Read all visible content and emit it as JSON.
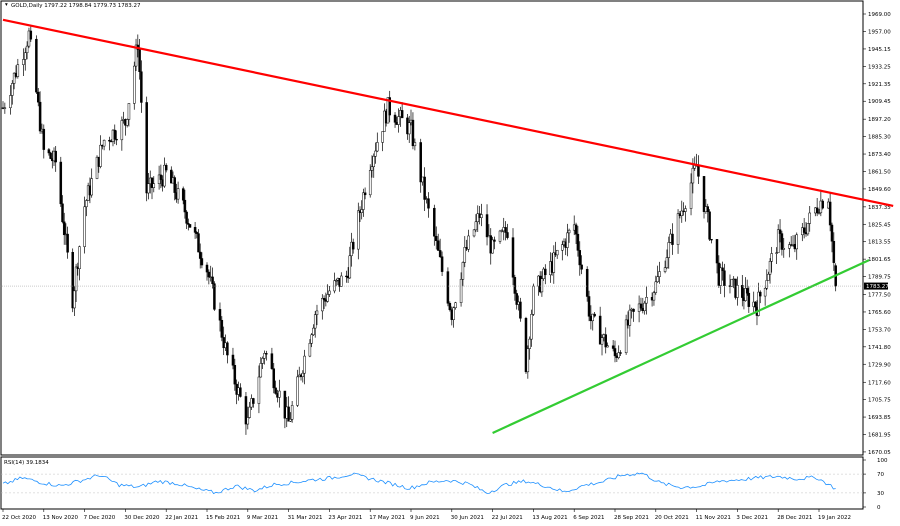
{
  "header": {
    "symbol_line": "GOLD,Daily  1797.22 1798.84 1779.73 1783.27",
    "rsi_label": "RSI(14) 39.1834"
  },
  "current_price_tag": "1783.27",
  "colors": {
    "resistance": "#ff0000",
    "support": "#33cc33",
    "rsi_line": "#1e90ff",
    "candle_body": "#000000",
    "background": "#ffffff"
  },
  "chart_data": {
    "type": "candlestick",
    "title": "",
    "instrument": "GOLD",
    "timeframe": "Daily",
    "last_bar": {
      "open": 1797.22,
      "high": 1798.84,
      "low": 1779.73,
      "close": 1783.27
    },
    "ylim": [
      1670.0,
      1969.0
    ],
    "y_ticks": [
      "1969.00",
      "1957.00",
      "1945.15",
      "1933.25",
      "1921.35",
      "1909.45",
      "1897.20",
      "1885.30",
      "1873.40",
      "1861.50",
      "1849.60",
      "1837.35",
      "1825.45",
      "1813.55",
      "1801.65",
      "1789.75",
      "1777.50",
      "1765.60",
      "1753.70",
      "1741.80",
      "1729.90",
      "1717.60",
      "1705.75",
      "1693.85",
      "1681.95",
      "1670.05"
    ],
    "x_ticks": [
      "22 Oct 2020",
      "13 Nov 2020",
      "7 Dec 2020",
      "30 Dec 2020",
      "22 Jan 2021",
      "15 Feb 2021",
      "9 Mar 2021",
      "31 Mar 2021",
      "23 Apr 2021",
      "17 May 2021",
      "9 Jun 2021",
      "30 Jun 2021",
      "22 Jul 2021",
      "13 Aug 2021",
      "6 Sep 2021",
      "28 Sep 2021",
      "20 Oct 2021",
      "11 Nov 2021",
      "3 Dec 2021",
      "28 Dec 2021",
      "19 Jan 2022"
    ],
    "price_path": [
      [
        "22 Oct 2020",
        1905
      ],
      [
        "5 Nov 2020",
        1955
      ],
      [
        "13 Nov 2020",
        1875
      ],
      [
        "20 Nov 2020",
        1868
      ],
      [
        "30 Nov 2020",
        1775
      ],
      [
        "7 Dec 2020",
        1838
      ],
      [
        "18 Dec 2020",
        1883
      ],
      [
        "30 Dec 2020",
        1895
      ],
      [
        "6 Jan 2021",
        1950
      ],
      [
        "11 Jan 2021",
        1848
      ],
      [
        "22 Jan 2021",
        1860
      ],
      [
        "2 Feb 2021",
        1835
      ],
      [
        "15 Feb 2021",
        1795
      ],
      [
        "26 Feb 2021",
        1735
      ],
      [
        "9 Mar 2021",
        1690
      ],
      [
        "18 Mar 2021",
        1740
      ],
      [
        "31 Mar 2021",
        1690
      ],
      [
        "15 Apr 2021",
        1765
      ],
      [
        "23 Apr 2021",
        1780
      ],
      [
        "3 May 2021",
        1790
      ],
      [
        "17 May 2021",
        1868
      ],
      [
        "27 May 2021",
        1905
      ],
      [
        "9 Jun 2021",
        1890
      ],
      [
        "16 Jun 2021",
        1845
      ],
      [
        "30 Jun 2021",
        1765
      ],
      [
        "7 Jul 2021",
        1805
      ],
      [
        "15 Jul 2021",
        1832
      ],
      [
        "22 Jul 2021",
        1808
      ],
      [
        "30 Jul 2021",
        1822
      ],
      [
        "9 Aug 2021",
        1730
      ],
      [
        "13 Aug 2021",
        1778
      ],
      [
        "25 Aug 2021",
        1800
      ],
      [
        "6 Sep 2021",
        1825
      ],
      [
        "15 Sep 2021",
        1760
      ],
      [
        "28 Sep 2021",
        1735
      ],
      [
        "6 Oct 2021",
        1760
      ],
      [
        "20 Oct 2021",
        1784
      ],
      [
        "11 Nov 2021",
        1865
      ],
      [
        "23 Nov 2021",
        1790
      ],
      [
        "3 Dec 2021",
        1780
      ],
      [
        "15 Dec 2021",
        1770
      ],
      [
        "28 Dec 2021",
        1815
      ],
      [
        "5 Jan 2022",
        1808
      ],
      [
        "19 Jan 2022",
        1840
      ],
      [
        "24 Jan 2022",
        1845
      ],
      [
        "27 Jan 2022",
        1798
      ],
      [
        "28 Jan 2022",
        1783.27
      ]
    ],
    "trendlines": [
      {
        "role": "resistance",
        "color": "#ff0000",
        "from": [
          "22 Oct 2020",
          1965
        ],
        "to": [
          "28 Feb 2022",
          1838
        ]
      },
      {
        "role": "support",
        "color": "#33cc33",
        "from": [
          "22 Jul 2021",
          1683
        ],
        "to": [
          "15 Feb 2022",
          1801
        ]
      }
    ],
    "rsi": {
      "label": "RSI(14) 39.1834",
      "value": 39.1834,
      "ylim": [
        0,
        100
      ],
      "y_ticks": [
        "100",
        "70",
        "30",
        "0"
      ],
      "path": [
        [
          0,
          48
        ],
        [
          0.02,
          62
        ],
        [
          0.04,
          52
        ],
        [
          0.06,
          45
        ],
        [
          0.08,
          56
        ],
        [
          0.1,
          68
        ],
        [
          0.12,
          47
        ],
        [
          0.14,
          42
        ],
        [
          0.16,
          55
        ],
        [
          0.18,
          50
        ],
        [
          0.2,
          38
        ],
        [
          0.22,
          30
        ],
        [
          0.24,
          45
        ],
        [
          0.26,
          35
        ],
        [
          0.28,
          48
        ],
        [
          0.3,
          52
        ],
        [
          0.32,
          58
        ],
        [
          0.34,
          62
        ],
        [
          0.36,
          70
        ],
        [
          0.38,
          60
        ],
        [
          0.4,
          50
        ],
        [
          0.42,
          40
        ],
        [
          0.44,
          52
        ],
        [
          0.46,
          57
        ],
        [
          0.48,
          50
        ],
        [
          0.5,
          30
        ],
        [
          0.52,
          48
        ],
        [
          0.54,
          55
        ],
        [
          0.56,
          45
        ],
        [
          0.58,
          32
        ],
        [
          0.6,
          46
        ],
        [
          0.62,
          54
        ],
        [
          0.64,
          68
        ],
        [
          0.66,
          72
        ],
        [
          0.68,
          50
        ],
        [
          0.7,
          42
        ],
        [
          0.72,
          44
        ],
        [
          0.74,
          55
        ],
        [
          0.76,
          58
        ],
        [
          0.78,
          62
        ],
        [
          0.8,
          65
        ],
        [
          0.82,
          60
        ],
        [
          0.84,
          63
        ],
        [
          0.86,
          39.18
        ]
      ]
    }
  }
}
